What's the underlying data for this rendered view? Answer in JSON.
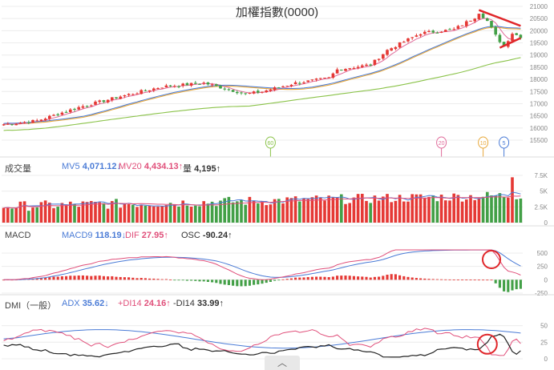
{
  "title": "加權指數(0000)",
  "colors": {
    "up": "#e53935",
    "down": "#43a047",
    "ma5": "#4a7bd6",
    "ma20": "#e8a83a",
    "ma60": "#8bc34a",
    "annot": "#e0262a"
  },
  "panels": {
    "volume": {
      "label": "成交量",
      "ma5_label": "MV5",
      "ma5_value": "4,071.12",
      "ma5_dir": "down",
      "ma20_label": "MV20",
      "ma20_value": "4,434.13",
      "ma20_dir": "up",
      "vol_label": "量",
      "vol_value": "4,195",
      "vol_dir": "up"
    },
    "macd": {
      "label": "MACD",
      "macd9_label": "MACD9",
      "macd9_value": "118.19",
      "macd9_dir": "down",
      "dif_label": "DIF",
      "dif_value": "27.95",
      "dif_dir": "up",
      "osc_label": "OSC",
      "osc_value": "-90.24",
      "osc_dir": "up"
    },
    "dmi": {
      "label": "DMI（一般）",
      "adx_label": "ADX",
      "adx_value": "35.62",
      "adx_dir": "down",
      "pdi_label": "+DI14",
      "pdi_value": "24.16",
      "pdi_dir": "up",
      "mdi_label": "-DI14",
      "mdi_value": "33.99",
      "mdi_dir": "up"
    }
  },
  "period_markers": [
    "60",
    "20",
    "10",
    "5"
  ],
  "scroll_icon": "chevron-up-icon",
  "chart_data": [
    {
      "type": "candlestick",
      "title": "加權指數(0000)",
      "ylim": [
        15500,
        21000
      ],
      "y_ticks": [
        "21000",
        "20500",
        "20000",
        "19500",
        "19000",
        "18500",
        "18000",
        "17500",
        "17000",
        "16500",
        "16000",
        "15500"
      ],
      "n": 125,
      "series": [
        {
          "name": "MA5"
        },
        {
          "name": "MA20"
        },
        {
          "name": "MA60"
        }
      ],
      "ohlc_checkpoints": [
        [
          0,
          16150
        ],
        [
          8,
          16300
        ],
        [
          18,
          16850
        ],
        [
          28,
          17300
        ],
        [
          38,
          17700
        ],
        [
          48,
          17850
        ],
        [
          58,
          17400
        ],
        [
          62,
          17500
        ],
        [
          70,
          17850
        ],
        [
          78,
          18050
        ],
        [
          80,
          18400
        ],
        [
          88,
          18600
        ],
        [
          92,
          19200
        ],
        [
          100,
          19900
        ],
        [
          108,
          20050
        ],
        [
          113,
          20550
        ],
        [
          114,
          20750
        ],
        [
          116,
          20400
        ],
        [
          118,
          19800
        ],
        [
          120,
          19350
        ],
        [
          122,
          19900
        ],
        [
          124,
          19750
        ]
      ]
    },
    {
      "type": "bar",
      "title": "成交量",
      "ylim": [
        0,
        7500
      ],
      "y_ticks": [
        "7.5K",
        "5K",
        "2.5K",
        "0"
      ],
      "series": [
        {
          "name": "MV5"
        },
        {
          "name": "MV20"
        }
      ]
    },
    {
      "type": "line",
      "title": "MACD",
      "ylim": [
        -250,
        650
      ],
      "y_ticks": [
        "500",
        "250",
        "0",
        "-250"
      ],
      "series": [
        {
          "name": "MACD9"
        },
        {
          "name": "DIF"
        },
        {
          "name": "OSC"
        }
      ]
    },
    {
      "type": "line",
      "title": "DMI（一般）",
      "ylim": [
        0,
        70
      ],
      "y_ticks": [
        "50",
        "25",
        "0"
      ],
      "series": [
        {
          "name": "ADX"
        },
        {
          "name": "+DI14"
        },
        {
          "name": "-DI14"
        }
      ]
    }
  ]
}
